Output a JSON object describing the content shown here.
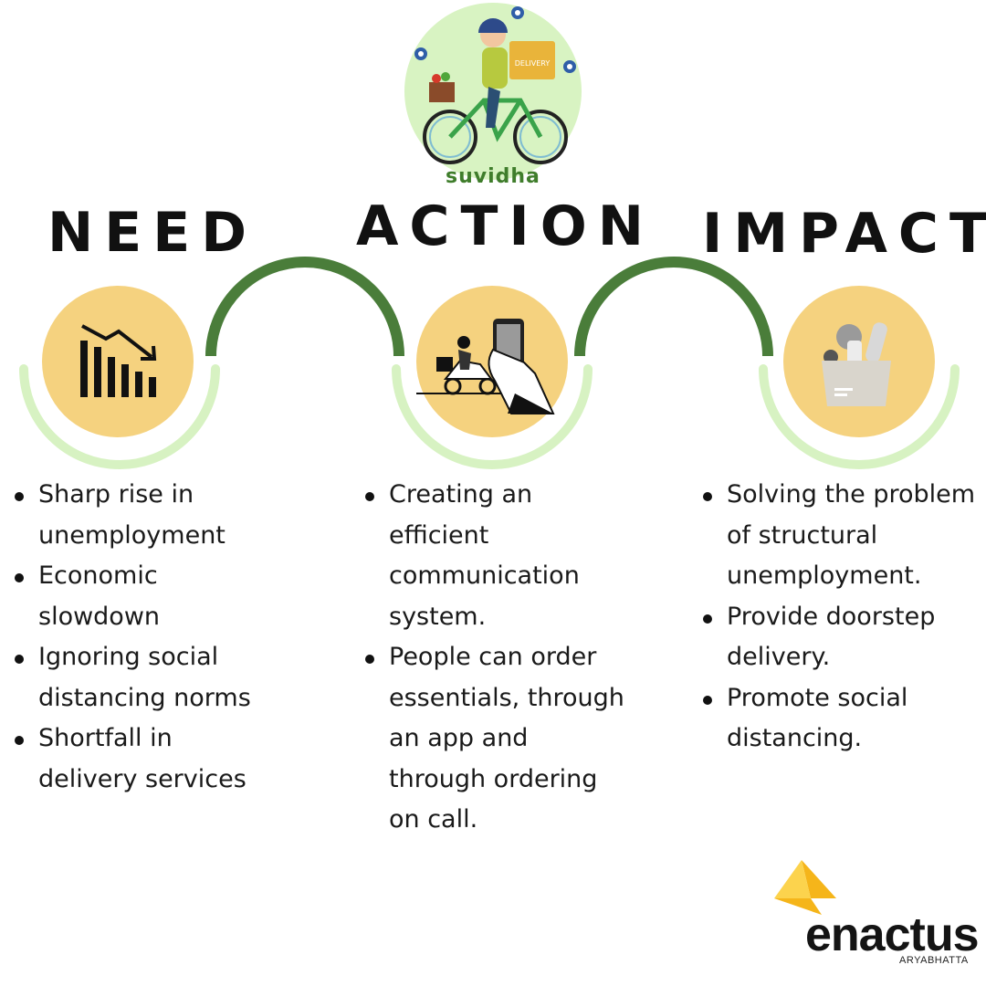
{
  "logo": {
    "brand_name": "suvidha",
    "bag_label": "DELIVERY"
  },
  "columns": [
    {
      "heading": "NEED",
      "icon": "declining-bar-chart-icon",
      "bullets": [
        "Sharp rise in unemployment",
        "Economic slowdown",
        "Ignoring social distancing norms",
        " Shortfall in delivery services"
      ]
    },
    {
      "heading": "ACTION",
      "icon": "scooter-delivery-phone-icon",
      "bullets": [
        "Creating an efficient communication system.",
        "People can order essentials, through an app and through ordering on call."
      ]
    },
    {
      "heading": "IMPACT",
      "icon": "grocery-bag-icon",
      "bullets": [
        " Solving the problem of structural unemployment.",
        "Provide doorstep delivery.",
        "Promote social distancing."
      ]
    }
  ],
  "footer_logo": {
    "name": "enactus",
    "subtitle": "ARYABHATTA"
  },
  "colors": {
    "circle_fill": "#f5d27f",
    "ring_light": "#d7f2c2",
    "arc_dark": "#4a7d3a",
    "logo_bg": "#d8f3c2",
    "brand_green": "#3f7d2b",
    "enactus_yellow": "#f5b51a",
    "text": "#111111"
  }
}
